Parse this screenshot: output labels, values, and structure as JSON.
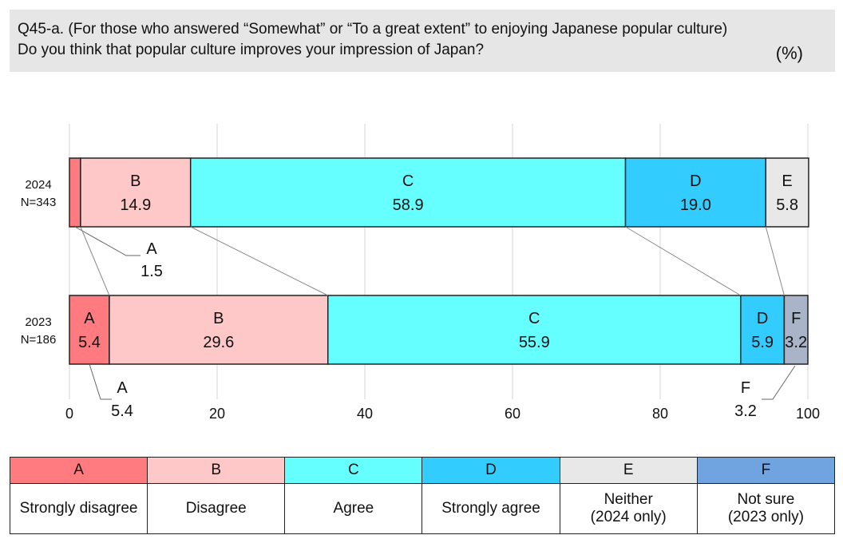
{
  "question": {
    "line1": "Q45-a. (For those who answered “Somewhat” or “To a great extent” to enjoying Japanese popular culture)",
    "line2": "Do you think that popular culture improves your impression of Japan?",
    "unit": "(%)"
  },
  "chart_data": {
    "type": "bar",
    "orientation": "horizontal-stacked-100",
    "xlim": [
      0,
      100
    ],
    "xticks": [
      0,
      20,
      40,
      60,
      80,
      100
    ],
    "grid": true,
    "series_keys": [
      "A",
      "B",
      "C",
      "D",
      "E",
      "F"
    ],
    "colors": {
      "A": "#ff7b80",
      "B": "#ffc8c8",
      "C": "#66ffff",
      "D": "#33ccff",
      "E": "#e8e8e8",
      "F": "#a9b4c8"
    },
    "bars": [
      {
        "label_line1": "2024",
        "label_line2": "N=343",
        "values": {
          "A": 1.5,
          "B": 14.9,
          "C": 58.9,
          "D": 19.0,
          "E": 5.8,
          "F": 0
        }
      },
      {
        "label_line1": "2023",
        "label_line2": "N=186",
        "values": {
          "A": 5.4,
          "B": 29.6,
          "C": 55.9,
          "D": 5.9,
          "E": 0,
          "F": 3.2
        }
      }
    ]
  },
  "legend": {
    "header_colors": {
      "A": "#ff7b80",
      "B": "#ffc8c8",
      "C": "#66ffff",
      "D": "#33ccff",
      "E": "#e8e8e8",
      "F": "#70a4e0"
    },
    "items": [
      {
        "key": "A",
        "line1": "Strongly disagree",
        "line2": ""
      },
      {
        "key": "B",
        "line1": "Disagree",
        "line2": ""
      },
      {
        "key": "C",
        "line1": "Agree",
        "line2": ""
      },
      {
        "key": "D",
        "line1": "Strongly agree",
        "line2": ""
      },
      {
        "key": "E",
        "line1": "Neither",
        "line2": "(2024 only)"
      },
      {
        "key": "F",
        "line1": "Not sure",
        "line2": "(2023 only)"
      }
    ]
  }
}
